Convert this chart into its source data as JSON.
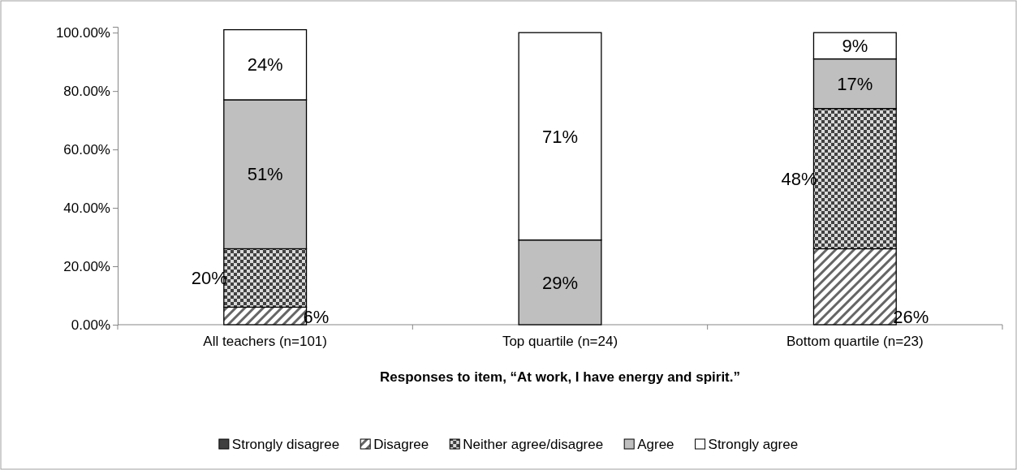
{
  "chart_data": {
    "type": "bar",
    "stacked": true,
    "xlabel": "Responses to item, “At work, I have energy and spirit.”",
    "categories": [
      "All teachers (n=101)",
      "Top quartile (n=24)",
      "Bottom quartile (n=23)"
    ],
    "series": [
      {
        "name": "Strongly disagree",
        "color": "#404040",
        "values": [
          0,
          0,
          0
        ],
        "value_labels": [
          null,
          null,
          null
        ]
      },
      {
        "name": "Disagree",
        "color": "#000000",
        "values": [
          6,
          0,
          26
        ],
        "value_labels": [
          "6%",
          null,
          "26%"
        ]
      },
      {
        "name": "Neither agree/disagree",
        "color": "#000000",
        "values": [
          20,
          0,
          48
        ],
        "value_labels": [
          "20%",
          null,
          "48%"
        ]
      },
      {
        "name": "Agree",
        "color": "#bfbfbf",
        "values": [
          51,
          29,
          17
        ],
        "value_labels": [
          "51%",
          "29%",
          "17%"
        ]
      },
      {
        "name": "Strongly agree",
        "color": "#ffffff",
        "values": [
          24,
          71,
          9
        ],
        "value_labels": [
          "24%",
          "71%",
          "9%"
        ]
      }
    ],
    "ylim": [
      0,
      102
    ],
    "yticks": [
      {
        "value": 0,
        "label": "0.00%"
      },
      {
        "value": 20,
        "label": "20.00%"
      },
      {
        "value": 40,
        "label": "40.00%"
      },
      {
        "value": 60,
        "label": "60.00%"
      },
      {
        "value": 80,
        "label": "80.00%"
      },
      {
        "value": 100,
        "label": "100.00%"
      }
    ],
    "grid": false,
    "legend": "bottom"
  }
}
